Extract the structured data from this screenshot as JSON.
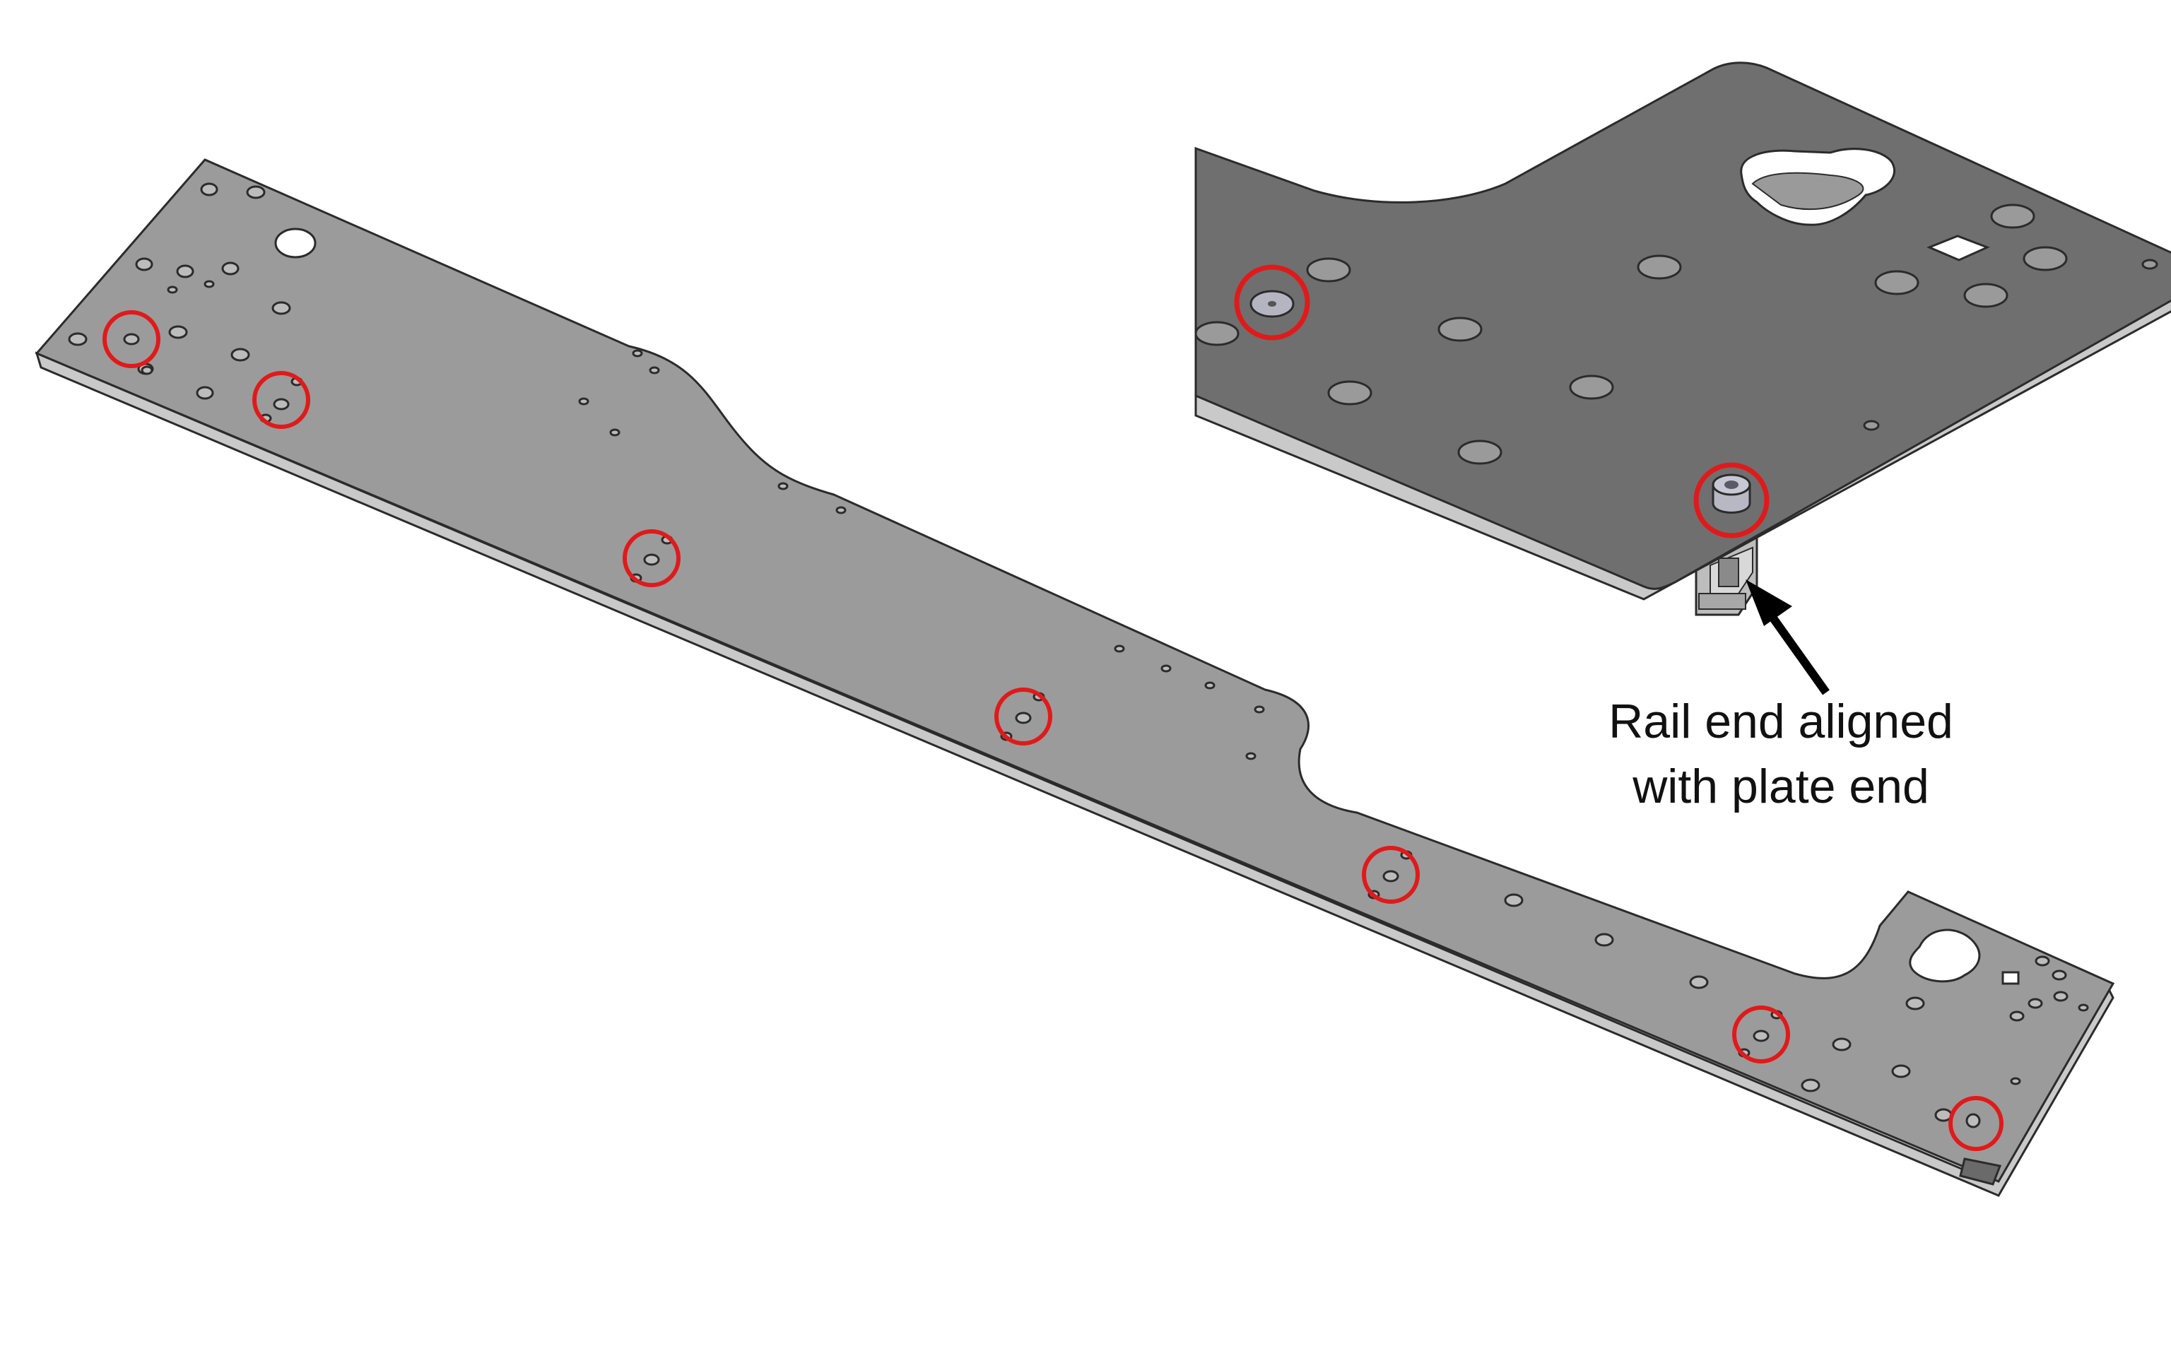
{
  "callout": {
    "line1": "Rail end aligned",
    "line2": "with plate end"
  },
  "colors": {
    "plate_top_main": "#9b9b9b",
    "plate_top_inset": "#6f6f6f",
    "plate_edge": "#c9c9c9",
    "hole_fill": "#bcbcbc",
    "hole_stroke": "#3a3a3a",
    "highlight_circle": "#e01a1a",
    "arrow": "#000000"
  },
  "icons": {
    "main_plate": "long-base-plate",
    "detail_plate": "plate-end-detail",
    "rail": "aluminum-rail-profile",
    "screw": "screw-head-icon"
  }
}
